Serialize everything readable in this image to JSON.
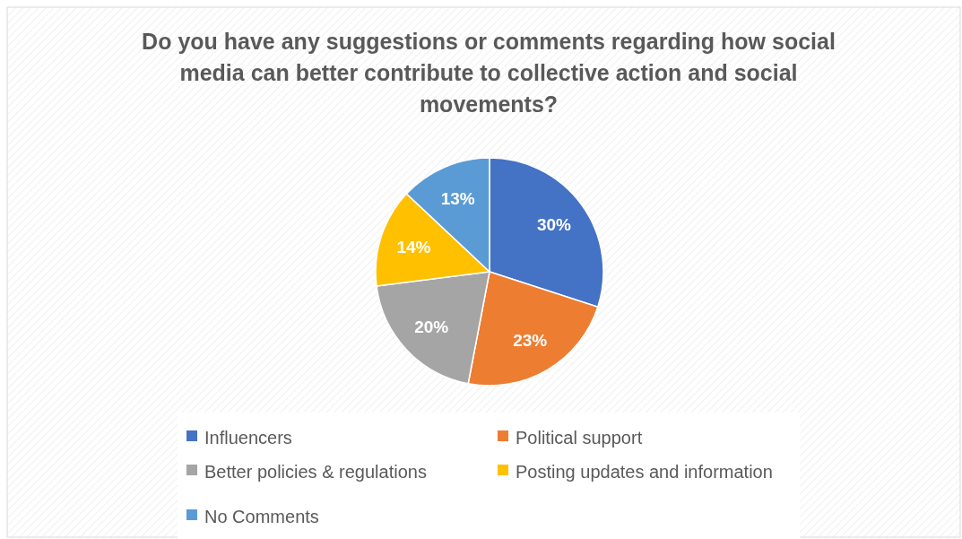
{
  "chart_data": {
    "type": "pie",
    "title": "Do you have any suggestions or comments regarding how social media can better contribute to collective action and social movements?",
    "categories": [
      "Influencers",
      "Political support",
      "Better policies & regulations",
      "Posting updates and information",
      "No Comments"
    ],
    "values": [
      30,
      23,
      20,
      14,
      13
    ],
    "colors": [
      "#4472c4",
      "#ed7d31",
      "#a5a5a5",
      "#ffc000",
      "#5b9bd5"
    ],
    "value_labels": [
      "30%",
      "23%",
      "20%",
      "14%",
      "13%"
    ],
    "legend": "bottom"
  }
}
